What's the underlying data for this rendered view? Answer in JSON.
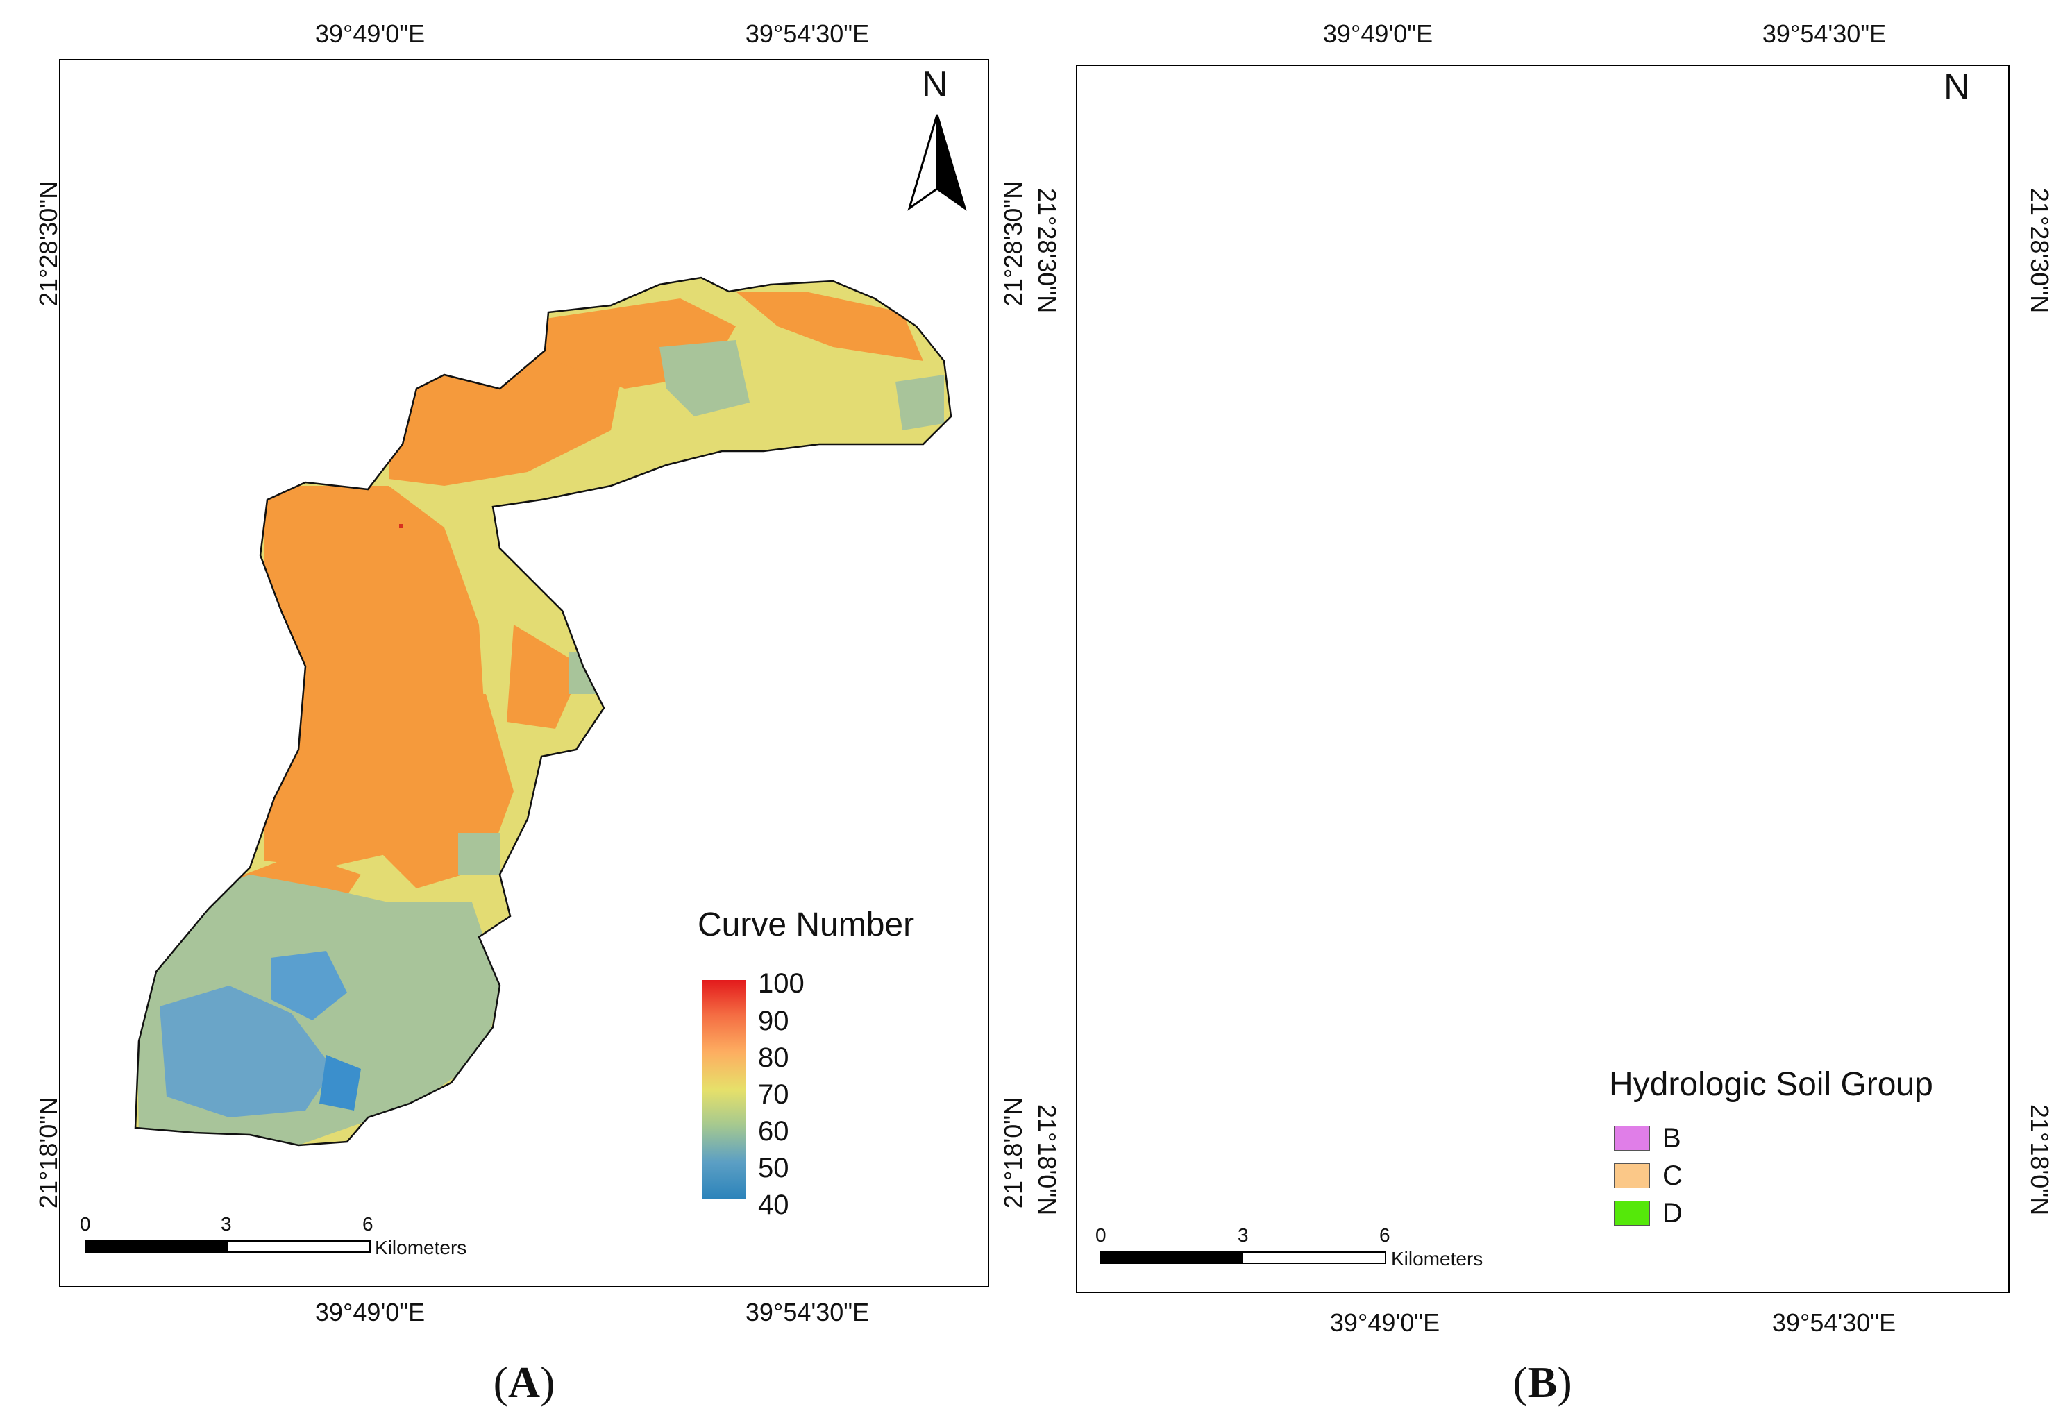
{
  "panels": [
    {
      "label": "A",
      "top_ticks": [
        "39°49'0\"E",
        "39°54'30\"E"
      ],
      "bottom_ticks": [
        "39°49'0\"E",
        "39°54'30\"E"
      ],
      "left_ticks": [
        "21°28'30\"N",
        "21°18'0\"N"
      ],
      "right_ticks": [
        "21°28'30\"N",
        "21°18'0\"N"
      ],
      "north": "N",
      "legend": {
        "title": "Curve Number",
        "values": [
          "100",
          "90",
          "80",
          "70",
          "60",
          "50",
          "40"
        ],
        "colors": [
          "#e31a1c",
          "#f46d43",
          "#fdae61",
          "#e6e06a",
          "#a6c98f",
          "#5c9fc4",
          "#2b83ba"
        ]
      },
      "scale": {
        "labels": [
          "0",
          "3",
          "6"
        ],
        "unit": "Kilometers"
      }
    },
    {
      "label": "B",
      "top_ticks": [
        "39°49'0\"E",
        "39°54'30\"E"
      ],
      "bottom_ticks": [
        "39°49'0\"E",
        "39°54'30\"E"
      ],
      "left_ticks": [
        "21°28'30\"N",
        "21°18'0\"N"
      ],
      "right_ticks": [
        "21°28'30\"N",
        "21°18'0\"N"
      ],
      "north": "N",
      "legend": {
        "title": "Hydrologic Soil Group",
        "items": [
          {
            "label": "B",
            "color": "#e07ee8"
          },
          {
            "label": "C",
            "color": "#fbc888"
          },
          {
            "label": "D",
            "color": "#55e80a"
          }
        ]
      },
      "scale": {
        "labels": [
          "0",
          "3",
          "6"
        ],
        "unit": "Kilometers"
      }
    }
  ]
}
